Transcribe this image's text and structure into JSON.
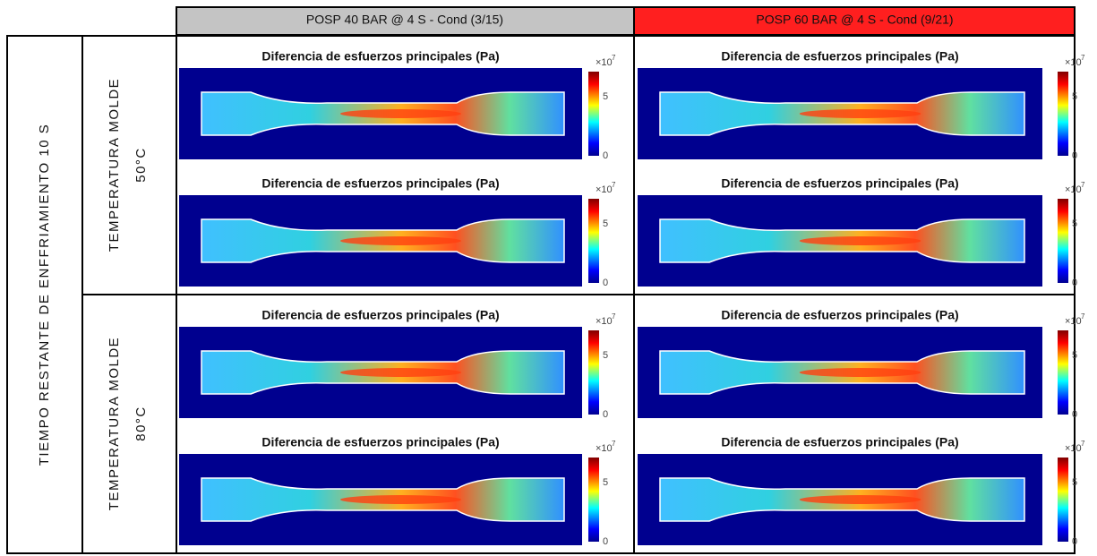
{
  "table": {
    "columns": [
      "POSP 40 BAR @ 4 S - Cond (3/15)",
      "POSP 60 BAR @ 4 S - Cond (9/21)"
    ],
    "row_group": "TIEMPO RESTANTE DE  ENFFRIAMIENTO 10 S",
    "rows": [
      {
        "label": [
          "TEMPERATURA MOLDE",
          "50°C"
        ],
        "cells": [
          {
            "plots": [
              {
                "title": "Diferencia de esfuerzos principales (Pa)",
                "scale": "×10",
                "exponent": "7",
                "ticks": [
                  "0",
                  "5"
                ]
              },
              {
                "title": "Diferencia de esfuerzos principales (Pa)",
                "scale": "×10",
                "exponent": "7",
                "ticks": [
                  "0",
                  "5"
                ]
              }
            ]
          },
          {
            "plots": [
              {
                "title": "Diferencia de esfuerzos principales (Pa)",
                "scale": "×10",
                "exponent": "7",
                "ticks": [
                  "0",
                  "5"
                ]
              },
              {
                "title": "Diferencia de esfuerzos principales (Pa)",
                "scale": "×10",
                "exponent": "7",
                "ticks": [
                  "0",
                  "5"
                ]
              }
            ]
          }
        ]
      },
      {
        "label": [
          "TEMPERATURA MOLDE",
          "80°C"
        ],
        "cells": [
          {
            "plots": [
              {
                "title": "Diferencia de esfuerzos principales (Pa)",
                "scale": "×10",
                "exponent": "7",
                "ticks": [
                  "0",
                  "5"
                ]
              },
              {
                "title": "Diferencia de esfuerzos principales (Pa)",
                "scale": "×10",
                "exponent": "7",
                "ticks": [
                  "0",
                  "5"
                ]
              }
            ]
          },
          {
            "plots": [
              {
                "title": "Diferencia de esfuerzos principales (Pa)",
                "scale": "×10",
                "exponent": "7",
                "ticks": [
                  "0",
                  "5"
                ]
              },
              {
                "title": "Diferencia de esfuerzos principales (Pa)",
                "scale": "×10",
                "exponent": "7",
                "ticks": [
                  "0",
                  "5"
                ]
              }
            ]
          }
        ]
      }
    ]
  }
}
